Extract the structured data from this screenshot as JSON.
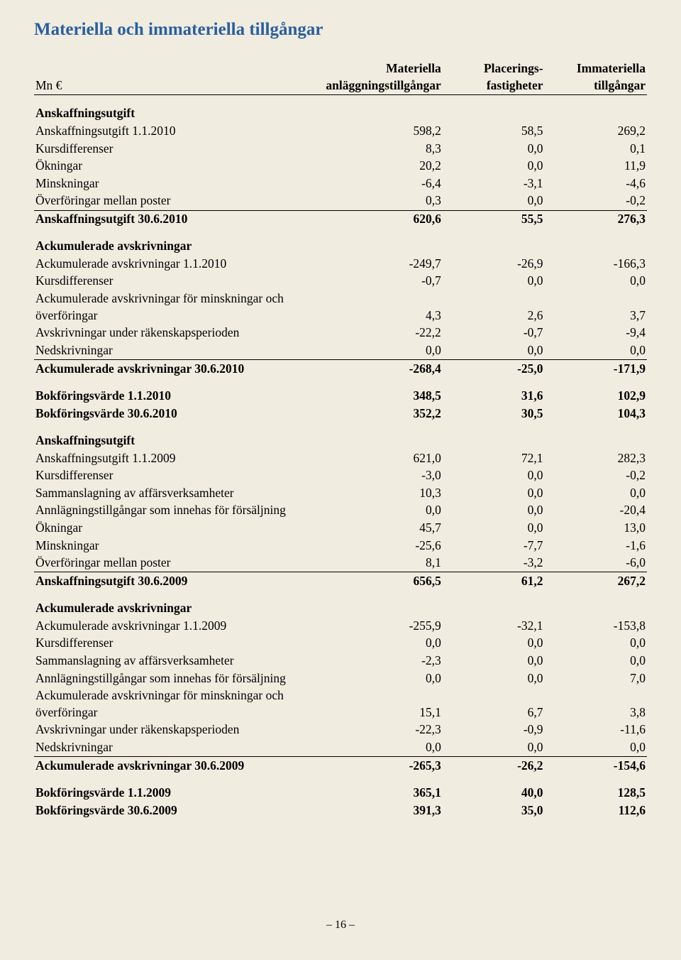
{
  "title": "Materiella och immateriella tillgångar",
  "header": {
    "unit": "Mn €",
    "col1a": "Materiella",
    "col1b": "anläggningstillgångar",
    "col2a": "Placerings-",
    "col2b": "fastigheter",
    "col3a": "Immateriella",
    "col3b": "tillgångar"
  },
  "sections": [
    {
      "type": "head",
      "label": "Anskaffningsutgift"
    },
    {
      "label": "Anskaffningsutgift 1.1.2010",
      "v": [
        "598,2",
        "58,5",
        "269,2"
      ]
    },
    {
      "label": "Kursdifferenser",
      "v": [
        "8,3",
        "0,0",
        "0,1"
      ]
    },
    {
      "label": "Ökningar",
      "v": [
        "20,2",
        "0,0",
        "11,9"
      ]
    },
    {
      "label": "Minskningar",
      "v": [
        "-6,4",
        "-3,1",
        "-4,6"
      ]
    },
    {
      "label": "Överföringar mellan poster",
      "v": [
        "0,3",
        "0,0",
        "-0,2"
      ],
      "border": true
    },
    {
      "label": "Anskaffningsutgift 30.6.2010",
      "v": [
        "620,6",
        "55,5",
        "276,3"
      ],
      "bold": true
    },
    {
      "type": "head",
      "label": "Ackumulerade avskrivningar"
    },
    {
      "label": "Ackumulerade avskrivningar 1.1.2010",
      "v": [
        "-249,7",
        "-26,9",
        "-166,3"
      ]
    },
    {
      "label": "Kursdifferenser",
      "v": [
        "-0,7",
        "0,0",
        "0,0"
      ]
    },
    {
      "label": "Ackumulerade avskrivningar för minskningar och överföringar",
      "v": [
        "4,3",
        "2,6",
        "3,7"
      ]
    },
    {
      "label": "Avskrivningar under räkenskapsperioden",
      "v": [
        "-22,2",
        "-0,7",
        "-9,4"
      ]
    },
    {
      "label": "Nedskrivningar",
      "v": [
        "0,0",
        "0,0",
        "0,0"
      ],
      "border": true
    },
    {
      "label": "Ackumulerade avskrivningar 30.6.2010",
      "v": [
        "-268,4",
        "-25,0",
        "-171,9"
      ],
      "bold": true
    },
    {
      "type": "gap"
    },
    {
      "label": "Bokföringsvärde 1.1.2010",
      "v": [
        "348,5",
        "31,6",
        "102,9"
      ],
      "bold": true
    },
    {
      "label": "Bokföringsvärde 30.6.2010",
      "v": [
        "352,2",
        "30,5",
        "104,3"
      ],
      "bold": true
    },
    {
      "type": "head",
      "label": "Anskaffningsutgift"
    },
    {
      "label": "Anskaffningsutgift 1.1.2009",
      "v": [
        "621,0",
        "72,1",
        "282,3"
      ]
    },
    {
      "label": "Kursdifferenser",
      "v": [
        "-3,0",
        "0,0",
        "-0,2"
      ]
    },
    {
      "label": "Sammanslagning av affärsverksamheter",
      "v": [
        "10,3",
        "0,0",
        "0,0"
      ]
    },
    {
      "label": "Annlägningstillgångar som innehas för försäljning",
      "v": [
        "0,0",
        "0,0",
        "-20,4"
      ]
    },
    {
      "label": "Ökningar",
      "v": [
        "45,7",
        "0,0",
        "13,0"
      ]
    },
    {
      "label": "Minskningar",
      "v": [
        "-25,6",
        "-7,7",
        "-1,6"
      ]
    },
    {
      "label": "Överföringar mellan poster",
      "v": [
        "8,1",
        "-3,2",
        "-6,0"
      ],
      "border": true
    },
    {
      "label": "Anskaffningsutgift 30.6.2009",
      "v": [
        "656,5",
        "61,2",
        "267,2"
      ],
      "bold": true
    },
    {
      "type": "head",
      "label": "Ackumulerade avskrivningar"
    },
    {
      "label": "Ackumulerade avskrivningar 1.1.2009",
      "v": [
        "-255,9",
        "-32,1",
        "-153,8"
      ]
    },
    {
      "label": "Kursdifferenser",
      "v": [
        "0,0",
        "0,0",
        "0,0"
      ]
    },
    {
      "label": "Sammanslagning av affärsverksamheter",
      "v": [
        "-2,3",
        "0,0",
        "0,0"
      ]
    },
    {
      "label": "Annlägningstillgångar som innehas för försäljning",
      "v": [
        "0,0",
        "0,0",
        "7,0"
      ]
    },
    {
      "label": "Ackumulerade avskrivningar för minskningar och överföringar",
      "v": [
        "15,1",
        "6,7",
        "3,8"
      ]
    },
    {
      "label": "Avskrivningar under räkenskapsperioden",
      "v": [
        "-22,3",
        "-0,9",
        "-11,6"
      ]
    },
    {
      "label": "Nedskrivningar",
      "v": [
        "0,0",
        "0,0",
        "0,0"
      ],
      "border": true
    },
    {
      "label": "Ackumulerade avskrivningar 30.6.2009",
      "v": [
        "-265,3",
        "-26,2",
        "-154,6"
      ],
      "bold": true
    },
    {
      "type": "gap"
    },
    {
      "label": "Bokföringsvärde 1.1.2009",
      "v": [
        "365,1",
        "40,0",
        "128,5"
      ],
      "bold": true
    },
    {
      "label": "Bokföringsvärde 30.6.2009",
      "v": [
        "391,3",
        "35,0",
        "112,6"
      ],
      "bold": true
    }
  ],
  "pageNumber": "– 16 –"
}
